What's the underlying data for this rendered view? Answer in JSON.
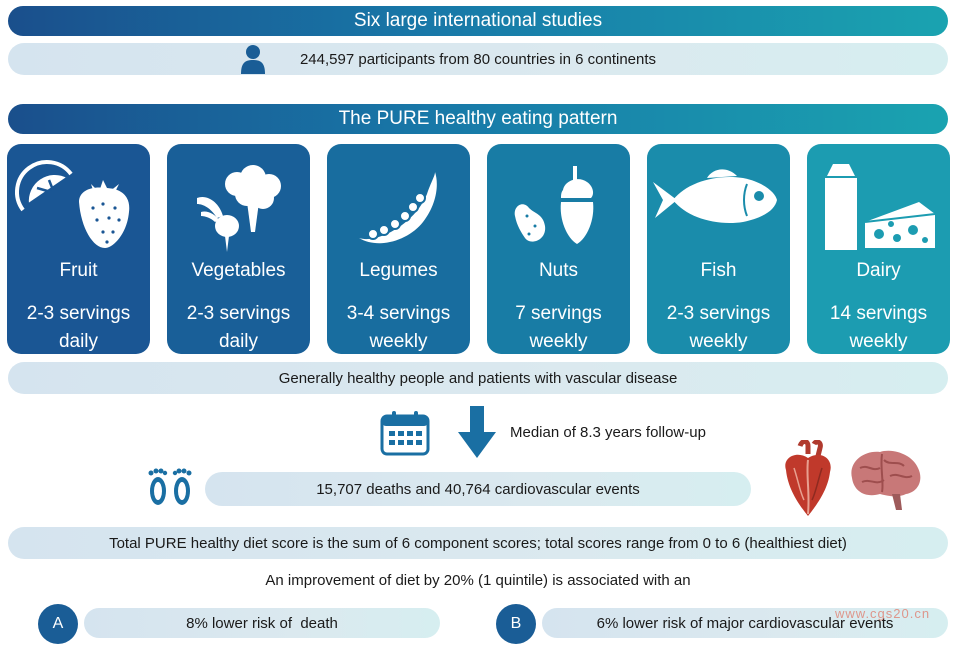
{
  "header": {
    "studies_title": "Six large international studies",
    "participants": "244,597 participants from 80 countries in 6 continents",
    "pattern_title": "The PURE healthy eating pattern"
  },
  "foods": [
    {
      "name": "Fruit",
      "servings_line1": "2-3 servings",
      "servings_line2": "daily",
      "icon": "fruit-icon",
      "color": "#1a5694"
    },
    {
      "name": "Vegetables",
      "servings_line1": "2-3 servings",
      "servings_line2": "daily",
      "icon": "vegetables-icon",
      "color": "#195f98"
    },
    {
      "name": "Legumes",
      "servings_line1": "3-4 servings",
      "servings_line2": "weekly",
      "icon": "legumes-icon",
      "color": "#186d9f"
    },
    {
      "name": "Nuts",
      "servings_line1": "7 servings",
      "servings_line2": "weekly",
      "icon": "nuts-icon",
      "color": "#187ca5"
    },
    {
      "name": "Fish",
      "servings_line1": "2-3 servings",
      "servings_line2": "weekly",
      "icon": "fish-icon",
      "color": "#1a8cab"
    },
    {
      "name": "Dairy",
      "servings_line1": "14 servings",
      "servings_line2": "weekly",
      "icon": "dairy-icon",
      "color": "#1c9cb1"
    }
  ],
  "population": "Generally healthy people and patients with vascular disease",
  "followup": "Median of 8.3 years follow-up",
  "events": "15,707 deaths and 40,764 cardiovascular events",
  "score_note": "Total PURE healthy diet score is the sum of 6 component scores; total scores range from 0 to 6 (healthiest diet)",
  "improvement": "An improvement of diet by 20% (1 quintile) is associated with an",
  "outcomes": [
    {
      "letter": "A",
      "text": "8% lower risk of  death"
    },
    {
      "letter": "B",
      "text": "6% lower risk of major cardiovascular events"
    }
  ],
  "watermark": "www.cgs20.cn",
  "colors": {
    "navy": "#1a4f8c",
    "teal": "#1aa3b0",
    "pill": "#d9e7ef",
    "circle": "#1a5d96",
    "heart": "#c0392b",
    "brain": "#c87878"
  }
}
